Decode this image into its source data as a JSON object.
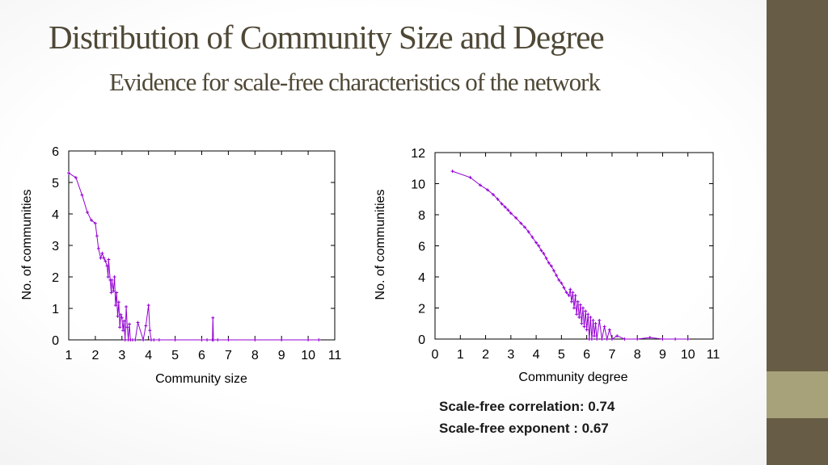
{
  "slide": {
    "title": "Distribution of Community Size and Degree",
    "subtitle": "Evidence for scale-free characteristics of the network",
    "stats": {
      "correlation": "Scale-free correlation: 0.74",
      "exponent": "Scale-free exponent : 0.67"
    },
    "colors": {
      "sidebar_dark": "#675d46",
      "sidebar_light": "#a7a27a",
      "series": "#9400d3",
      "title": "#4f4836"
    }
  },
  "chart_data": [
    {
      "type": "line",
      "xlabel": "Community size",
      "ylabel": "No. of communities",
      "xlim": [
        1,
        11
      ],
      "ylim": [
        0,
        6
      ],
      "xticks": [
        1,
        2,
        3,
        4,
        5,
        6,
        7,
        8,
        9,
        10,
        11
      ],
      "yticks": [
        0,
        1,
        2,
        3,
        4,
        5,
        6
      ],
      "grid": false,
      "series": [
        {
          "color": "#9400d3",
          "x": [
            1.0,
            1.27,
            1.5,
            1.7,
            1.85,
            2.0,
            2.06,
            2.12,
            2.2,
            2.26,
            2.32,
            2.38,
            2.44,
            2.48,
            2.5,
            2.56,
            2.6,
            2.62,
            2.68,
            2.72,
            2.76,
            2.8,
            2.84,
            2.88,
            2.92,
            2.96,
            3.0,
            3.04,
            3.08,
            3.12,
            3.16,
            3.2,
            3.24,
            3.28,
            3.32,
            3.4,
            3.5,
            3.6,
            3.8,
            3.9,
            4.0,
            4.05,
            4.1,
            4.2,
            4.4,
            5.0,
            6.0,
            6.2,
            6.4,
            6.42,
            6.44,
            6.6,
            7.0,
            8.0,
            9.0,
            10.0,
            10.4
          ],
          "y": [
            5.3,
            5.15,
            4.6,
            4.05,
            3.8,
            3.7,
            3.3,
            2.9,
            2.6,
            2.75,
            2.6,
            2.5,
            2.35,
            2.0,
            2.55,
            1.9,
            1.5,
            1.9,
            1.55,
            2.0,
            1.1,
            1.5,
            0.75,
            1.2,
            0.4,
            0.8,
            0.7,
            0.3,
            0.6,
            0.0,
            1.05,
            0.4,
            0.0,
            0.5,
            0.0,
            0.0,
            0.0,
            0.55,
            0.0,
            0.45,
            1.1,
            0.3,
            0.0,
            0.0,
            0.0,
            0.0,
            0.0,
            0.0,
            0.0,
            0.7,
            0.0,
            0.0,
            0.0,
            0.0,
            0.0,
            0.0,
            0.0
          ]
        }
      ]
    },
    {
      "type": "line",
      "xlabel": "Community degree",
      "ylabel": "No. of communities",
      "xlim": [
        0,
        11
      ],
      "ylim": [
        0,
        12
      ],
      "xticks": [
        0,
        1,
        2,
        3,
        4,
        5,
        6,
        7,
        8,
        9,
        10,
        11
      ],
      "yticks": [
        0,
        2,
        4,
        6,
        8,
        10,
        12
      ],
      "grid": false,
      "series": [
        {
          "color": "#9400d3",
          "x": [
            0.69,
            1.39,
            1.79,
            2.08,
            2.3,
            2.48,
            2.64,
            2.77,
            2.89,
            3.0,
            3.2,
            3.4,
            3.55,
            3.7,
            3.85,
            4.0,
            4.1,
            4.2,
            4.3,
            4.4,
            4.5,
            4.6,
            4.7,
            4.8,
            4.9,
            5.0,
            5.1,
            5.2,
            5.3,
            5.35,
            5.4,
            5.45,
            5.5,
            5.55,
            5.6,
            5.65,
            5.7,
            5.75,
            5.8,
            5.85,
            5.9,
            5.95,
            6.0,
            6.05,
            6.1,
            6.15,
            6.2,
            6.25,
            6.3,
            6.35,
            6.4,
            6.5,
            6.6,
            6.7,
            6.8,
            6.9,
            7.0,
            7.2,
            7.5,
            8.0,
            8.5,
            9.0,
            9.5,
            10.0
          ],
          "y": [
            10.8,
            10.4,
            9.9,
            9.6,
            9.3,
            9.0,
            8.7,
            8.5,
            8.3,
            8.1,
            7.8,
            7.45,
            7.2,
            6.9,
            6.55,
            6.2,
            6.0,
            5.7,
            5.5,
            5.2,
            4.9,
            4.7,
            4.4,
            4.1,
            3.8,
            3.6,
            3.3,
            3.0,
            2.8,
            3.2,
            2.4,
            3.0,
            2.0,
            2.8,
            1.6,
            2.4,
            1.4,
            2.2,
            1.0,
            2.0,
            0.8,
            1.8,
            0.6,
            1.6,
            0.0,
            1.4,
            0.0,
            1.2,
            0.2,
            1.0,
            0.0,
            1.2,
            0.0,
            0.8,
            0.0,
            0.6,
            0.0,
            0.2,
            0.0,
            0.0,
            0.1,
            0.0,
            0.0,
            0.0
          ]
        }
      ]
    }
  ]
}
